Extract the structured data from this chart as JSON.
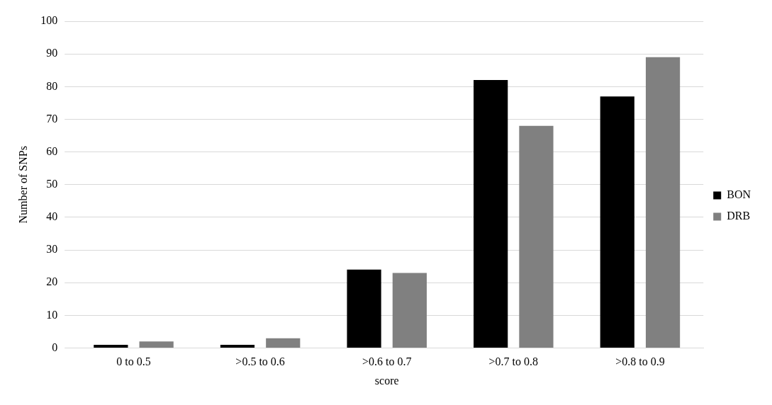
{
  "chart_data": {
    "type": "bar",
    "xlabel": "score",
    "ylabel": "Number of SNPs",
    "categories": [
      "0 to 0.5",
      ">0.5 to 0.6",
      ">0.6 to 0.7",
      ">0.7 to 0.8",
      ">0.8 to 0.9"
    ],
    "series": [
      {
        "name": "BON",
        "color": "#000000",
        "values": [
          1,
          1,
          24,
          82,
          77
        ]
      },
      {
        "name": "DRB",
        "color": "#808080",
        "values": [
          2,
          3,
          23,
          68,
          89
        ]
      }
    ],
    "ylim": [
      0,
      100
    ],
    "yticks": [
      0,
      10,
      20,
      30,
      40,
      50,
      60,
      70,
      80,
      90,
      100
    ],
    "grid": "y",
    "legend": "right"
  }
}
